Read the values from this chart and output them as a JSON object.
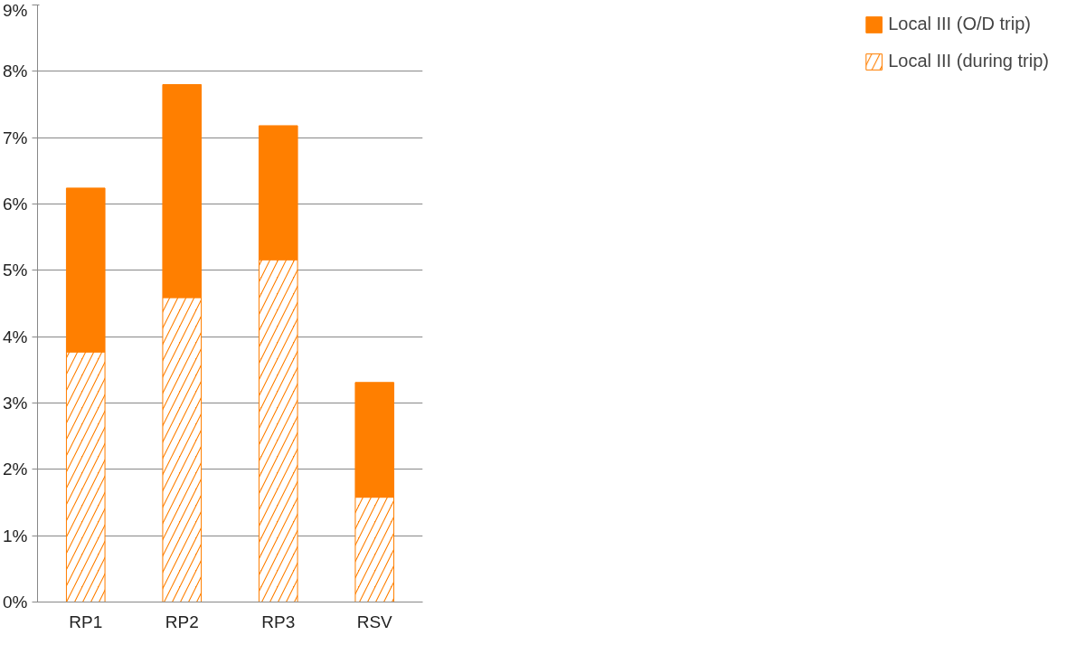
{
  "chart_data": {
    "type": "bar",
    "stacked": true,
    "categories": [
      "RP1",
      "RP2",
      "RP3",
      "RSV"
    ],
    "series": [
      {
        "name": "Local III (during trip)",
        "color": "#ff7f00",
        "values": [
          3.77,
          4.59,
          5.16,
          1.58
        ]
      },
      {
        "name": "Local III (O/D trip)",
        "color": "#ff7f00",
        "values": [
          2.47,
          3.21,
          2.02,
          1.73
        ]
      }
    ],
    "ylim": [
      0,
      9
    ],
    "yticks": [
      {
        "value": 0,
        "label": "0%"
      },
      {
        "value": 1,
        "label": "1%"
      },
      {
        "value": 2,
        "label": "2%"
      },
      {
        "value": 3,
        "label": "3%"
      },
      {
        "value": 4,
        "label": "4%"
      },
      {
        "value": 5,
        "label": "5%"
      },
      {
        "value": 6,
        "label": "6%"
      },
      {
        "value": 7,
        "label": "7%"
      },
      {
        "value": 8,
        "label": "8%"
      },
      {
        "value": 9,
        "label": "9%"
      }
    ],
    "grid": "y",
    "legend": "right"
  }
}
